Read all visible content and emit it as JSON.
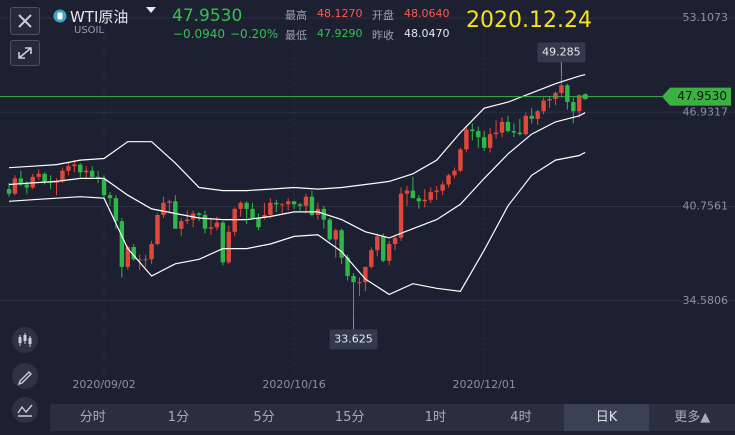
{
  "header": {
    "name": "WTI原油",
    "symbol": "USOIL",
    "price": "47.9530",
    "change": "−0.0940",
    "change_pct": "−0.20%",
    "high_label": "最高",
    "high": "48.1270",
    "open_label": "开盘",
    "open": "48.0640",
    "low_label": "最低",
    "low": "47.9290",
    "prev_close_label": "昨收",
    "prev_close": "48.0470",
    "date": "2020.12.24"
  },
  "toolbar": {
    "items": [
      "分时",
      "1分",
      "5分",
      "15分",
      "1时",
      "4时",
      "日K",
      "更多▲"
    ]
  },
  "chart_data": {
    "type": "candlestick",
    "categories": [
      null,
      null,
      null,
      null,
      null,
      null,
      null,
      null,
      null,
      null,
      null,
      null,
      null,
      null,
      null,
      null,
      "2020/09/02",
      null,
      null,
      null,
      null,
      null,
      null,
      null,
      null,
      null,
      null,
      null,
      null,
      null,
      null,
      null,
      null,
      null,
      null,
      null,
      null,
      null,
      null,
      null,
      null,
      null,
      null,
      null,
      null,
      null,
      null,
      null,
      "2020/10/16",
      null,
      null,
      null,
      null,
      null,
      null,
      null,
      null,
      null,
      null,
      null,
      null,
      null,
      null,
      null,
      null,
      null,
      null,
      null,
      null,
      null,
      null,
      null,
      null,
      null,
      null,
      null,
      null,
      null,
      null,
      null,
      "2020/12/01",
      null,
      null,
      null,
      null,
      null,
      null,
      null,
      null,
      null,
      null,
      null,
      null,
      null,
      null,
      null,
      null,
      null
    ],
    "open": [
      41.9,
      41.6,
      42.6,
      42.2,
      42.0,
      42.7,
      42.9,
      42.4,
      42.3,
      42.4,
      43.1,
      43.4,
      43.5,
      43.0,
      43.1,
      42.7,
      42.6,
      41.5,
      41.3,
      39.8,
      36.8,
      38.1,
      37.3,
      37.3,
      37.3,
      38.3,
      40.2,
      41.0,
      41.1,
      39.3,
      39.8,
      39.9,
      40.3,
      40.2,
      39.3,
      39.4,
      39.7,
      37.1,
      39.1,
      40.6,
      41.0,
      40.6,
      40.0,
      40.0,
      40.2,
      41.0,
      40.9,
      40.9,
      41.1,
      40.9,
      40.8,
      41.4,
      40.2,
      40.6,
      39.9,
      38.6,
      39.2,
      37.4,
      36.2,
      35.8,
      35.8,
      36.8,
      37.9,
      38.8,
      37.2,
      38.3,
      38.7,
      41.6,
      41.8,
      41.3,
      41.1,
      41.2,
      41.7,
      41.8,
      42.2,
      42.8,
      43.1,
      44.5,
      45.8,
      45.7,
      45.3,
      44.6,
      45.5,
      45.6,
      46.3,
      45.7,
      45.6,
      45.5,
      46.7,
      46.5,
      47.0,
      47.7,
      47.8,
      48.2,
      48.7,
      47.6,
      47.0,
      48.064
    ],
    "high": [
      42.3,
      42.8,
      43.1,
      42.4,
      42.9,
      43.2,
      43.0,
      42.8,
      42.6,
      43.3,
      43.6,
      43.8,
      43.6,
      43.4,
      43.4,
      43.1,
      42.8,
      41.7,
      41.5,
      40.0,
      38.2,
      38.3,
      37.6,
      37.6,
      38.5,
      40.3,
      41.4,
      41.2,
      41.5,
      40.0,
      40.5,
      40.5,
      40.4,
      40.5,
      40.0,
      40.1,
      39.8,
      39.5,
      40.7,
      41.1,
      41.1,
      41.0,
      40.3,
      41.0,
      41.3,
      41.2,
      41.0,
      41.3,
      41.1,
      41.0,
      41.6,
      41.8,
      41.0,
      40.8,
      40.0,
      39.3,
      39.3,
      37.6,
      36.4,
      36.1,
      36.8,
      38.1,
      39.0,
      39.0,
      38.5,
      38.9,
      42.0,
      42.1,
      42.7,
      41.5,
      41.9,
      42.0,
      42.1,
      42.4,
      42.9,
      43.3,
      44.6,
      46.0,
      46.2,
      46.0,
      45.7,
      45.9,
      46.4,
      46.6,
      46.7,
      46.2,
      46.5,
      46.9,
      47.2,
      47.1,
      47.9,
      48.0,
      48.3,
      49.285,
      48.8,
      47.9,
      48.1,
      48.127
    ],
    "low": [
      41.4,
      41.5,
      42.1,
      41.6,
      41.9,
      42.5,
      42.2,
      41.9,
      41.5,
      42.3,
      42.8,
      43.0,
      42.7,
      42.6,
      42.6,
      42.3,
      41.3,
      40.8,
      39.3,
      36.1,
      36.6,
      37.2,
      36.6,
      36.8,
      37.0,
      38.2,
      40.0,
      40.4,
      39.3,
      38.8,
      39.6,
      39.4,
      39.8,
      39.0,
      38.9,
      39.2,
      36.9,
      37.0,
      38.8,
      40.1,
      39.6,
      39.9,
      39.2,
      39.9,
      40.0,
      40.4,
      40.3,
      40.5,
      40.6,
      40.5,
      40.3,
      40.1,
      39.9,
      39.3,
      38.5,
      37.4,
      37.0,
      35.9,
      33.625,
      34.9,
      35.2,
      36.7,
      37.5,
      37.1,
      36.9,
      37.9,
      38.5,
      40.8,
      41.5,
      40.6,
      40.7,
      41.0,
      41.2,
      41.5,
      42.0,
      42.6,
      43.0,
      44.3,
      45.1,
      44.6,
      44.4,
      44.3,
      45.2,
      45.3,
      45.6,
      45.3,
      45.4,
      45.4,
      46.2,
      46.1,
      46.8,
      47.2,
      47.4,
      47.9,
      47.1,
      46.2,
      46.6,
      47.929
    ],
    "close": [
      41.6,
      42.6,
      42.2,
      42.0,
      42.7,
      42.9,
      42.4,
      42.3,
      42.4,
      43.1,
      43.4,
      43.5,
      43.0,
      43.1,
      42.7,
      42.6,
      41.5,
      41.3,
      39.8,
      36.8,
      38.1,
      37.3,
      37.3,
      37.3,
      38.3,
      40.2,
      41.0,
      41.1,
      39.3,
      39.8,
      39.9,
      40.3,
      40.2,
      39.3,
      39.4,
      39.7,
      37.1,
      39.1,
      40.6,
      41.0,
      40.6,
      40.0,
      39.4,
      40.2,
      41.0,
      40.9,
      40.9,
      41.1,
      40.9,
      40.8,
      41.4,
      40.2,
      40.6,
      39.9,
      38.6,
      39.2,
      37.4,
      36.2,
      35.8,
      35.8,
      36.8,
      37.9,
      38.8,
      37.2,
      38.3,
      38.7,
      41.6,
      41.8,
      41.3,
      41.1,
      41.2,
      41.7,
      41.8,
      42.2,
      42.8,
      43.1,
      44.5,
      45.8,
      45.7,
      45.3,
      44.6,
      45.5,
      45.6,
      46.3,
      45.7,
      45.6,
      45.5,
      46.7,
      46.5,
      47.0,
      47.7,
      47.8,
      48.2,
      48.7,
      47.6,
      47.0,
      48.047,
      47.953
    ],
    "up_color": "#e2473c",
    "down_color": "#2fb84a",
    "bands": {
      "x": [
        0,
        4,
        8,
        12,
        16,
        20,
        24,
        28,
        32,
        36,
        40,
        44,
        48,
        52,
        56,
        60,
        64,
        68,
        72,
        76,
        80,
        84,
        88,
        92,
        96,
        97
      ],
      "series": [
        {
          "color": "#ffffff",
          "values": [
            43.3,
            43.4,
            43.5,
            43.8,
            43.9,
            45.0,
            45.0,
            43.6,
            42.0,
            41.8,
            41.8,
            41.9,
            42.0,
            41.9,
            42.0,
            42.2,
            42.4,
            42.9,
            43.8,
            45.6,
            47.2,
            47.6,
            48.2,
            48.8,
            49.3,
            49.4
          ]
        },
        {
          "color": "#ffffff",
          "values": [
            42.2,
            42.3,
            42.4,
            42.6,
            42.6,
            41.5,
            40.6,
            40.3,
            40.0,
            39.9,
            39.9,
            40.1,
            40.4,
            40.4,
            39.9,
            39.1,
            38.7,
            39.3,
            39.9,
            40.9,
            42.6,
            44.2,
            45.5,
            46.3,
            46.7,
            46.9
          ]
        },
        {
          "color": "#ffffff",
          "values": [
            41.1,
            41.2,
            41.3,
            41.4,
            41.3,
            38.0,
            36.2,
            37.0,
            37.3,
            38.0,
            38.0,
            38.3,
            38.8,
            38.9,
            37.8,
            36.0,
            35.0,
            35.7,
            35.4,
            35.2,
            37.9,
            40.8,
            42.8,
            43.8,
            44.1,
            44.3
          ]
        }
      ]
    },
    "last_price": {
      "value": 47.953,
      "label": "47.9530"
    },
    "last_color": "#3cb043",
    "high_mark": 49.285,
    "low_mark": 33.625,
    "ylim": [
      29.52,
      53.1073
    ],
    "yticks": [
      53.1073,
      46.9317,
      40.7561,
      34.5806
    ],
    "grid": true
  }
}
